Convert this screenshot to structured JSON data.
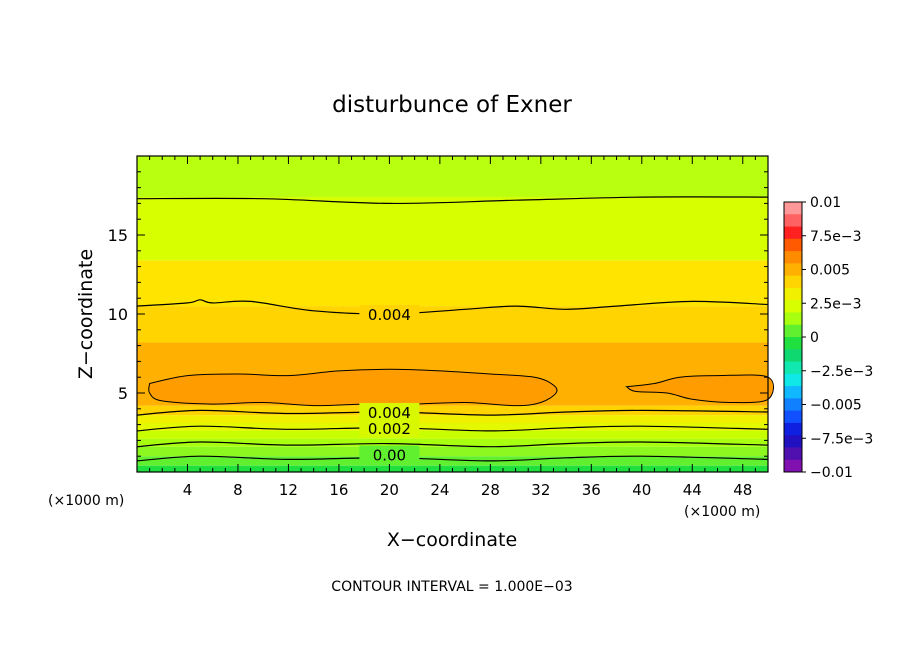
{
  "chart_data": {
    "type": "heatmap",
    "title": "disturbunce of Exner",
    "xlabel": "X−coordinate",
    "ylabel": "Z−coordinate",
    "x_unit": "(×1000 m)",
    "y_unit": "(×1000 m)",
    "xlim": [
      0,
      50
    ],
    "ylim": [
      0,
      20
    ],
    "x_ticks": [
      "4",
      "8",
      "12",
      "16",
      "20",
      "24",
      "28",
      "32",
      "36",
      "40",
      "44",
      "48"
    ],
    "y_ticks": [
      "5",
      "10",
      "15"
    ],
    "colorbar": {
      "range": [
        -0.01,
        0.01
      ],
      "labels": [
        "0.01",
        "7.5e−3",
        "0.005",
        "2.5e−3",
        "0",
        "−2.5e−3",
        "−0.005",
        "−7.5e−3",
        "−0.01"
      ],
      "colors": [
        "#ff9999",
        "#ff6262",
        "#ff2020",
        "#ff5a00",
        "#ff8c00",
        "#ffb000",
        "#ffd400",
        "#f0f000",
        "#d8ff00",
        "#a8ff10",
        "#60f030",
        "#20e040",
        "#10d870",
        "#10e8b0",
        "#10e8e8",
        "#10b8ff",
        "#1080ff",
        "#1050ff",
        "#1020e0",
        "#2010c0",
        "#5010b0",
        "#8010b0"
      ]
    },
    "contour_labels": [
      "0.004",
      "0.004",
      "0.002",
      "0.00"
    ],
    "contour_interval_text": "CONTOUR INTERVAL = 1.000E−03",
    "bands": [
      {
        "z_from": 0.0,
        "z_to": 0.4,
        "color": "#20e040"
      },
      {
        "z_from": 0.4,
        "z_to": 1.0,
        "color": "#60f030"
      },
      {
        "z_from": 1.0,
        "z_to": 1.6,
        "color": "#8cf820"
      },
      {
        "z_from": 1.6,
        "z_to": 2.1,
        "color": "#a8ff10"
      },
      {
        "z_from": 2.1,
        "z_to": 2.6,
        "color": "#c8ff00"
      },
      {
        "z_from": 2.6,
        "z_to": 3.1,
        "color": "#e4f800"
      },
      {
        "z_from": 3.1,
        "z_to": 3.6,
        "color": "#f0f000"
      },
      {
        "z_from": 3.6,
        "z_to": 4.2,
        "color": "#ffd400"
      },
      {
        "z_from": 4.2,
        "z_to": 8.2,
        "color": "#ffb000"
      },
      {
        "z_from": 8.2,
        "z_to": 10.5,
        "color": "#ffd400"
      },
      {
        "z_from": 10.5,
        "z_to": 13.4,
        "color": "#ffe400"
      },
      {
        "z_from": 13.4,
        "z_to": 17.4,
        "color": "#d8ff00"
      },
      {
        "z_from": 17.4,
        "z_to": 20.0,
        "color": "#b8ff10"
      }
    ],
    "core_color": "#ff9c00",
    "core_regions": [
      [
        [
          1.0,
          5.6
        ],
        [
          4.0,
          6.1
        ],
        [
          8.0,
          6.2
        ],
        [
          12.0,
          6.1
        ],
        [
          16.0,
          6.4
        ],
        [
          20.0,
          6.5
        ],
        [
          24.0,
          6.4
        ],
        [
          28.0,
          6.2
        ],
        [
          31.5,
          6.0
        ],
        [
          33.0,
          5.5
        ],
        [
          33.2,
          5.0
        ],
        [
          32.0,
          4.4
        ],
        [
          30.0,
          4.2
        ],
        [
          26.0,
          4.4
        ],
        [
          22.0,
          4.3
        ],
        [
          18.0,
          4.3
        ],
        [
          14.0,
          4.2
        ],
        [
          10.0,
          4.4
        ],
        [
          6.0,
          4.3
        ],
        [
          2.0,
          4.5
        ],
        [
          1.0,
          5.0
        ]
      ],
      [
        [
          38.8,
          5.4
        ],
        [
          41.0,
          5.6
        ],
        [
          43.0,
          6.0
        ],
        [
          46.0,
          6.1
        ],
        [
          50.0,
          6.0
        ],
        [
          50.0,
          4.6
        ],
        [
          47.0,
          4.4
        ],
        [
          44.0,
          4.6
        ],
        [
          42.0,
          5.0
        ],
        [
          39.5,
          5.1
        ]
      ]
    ],
    "contour_lines": [
      [
        [
          0,
          17.3
        ],
        [
          10,
          17.3
        ],
        [
          20,
          17.0
        ],
        [
          30,
          17.2
        ],
        [
          40,
          17.4
        ],
        [
          50,
          17.4
        ]
      ],
      [
        [
          0,
          10.5
        ],
        [
          4,
          10.7
        ],
        [
          5,
          10.9
        ],
        [
          6,
          10.7
        ],
        [
          9,
          10.8
        ],
        [
          14,
          10.2
        ],
        [
          20,
          10.0
        ],
        [
          26,
          10.3
        ],
        [
          30,
          10.5
        ],
        [
          34,
          10.3
        ],
        [
          38,
          10.5
        ],
        [
          44,
          10.8
        ],
        [
          50,
          10.6
        ]
      ],
      [
        [
          0,
          3.6
        ],
        [
          5,
          3.9
        ],
        [
          12,
          3.7
        ],
        [
          20,
          3.8
        ],
        [
          28,
          3.6
        ],
        [
          34,
          3.8
        ],
        [
          40,
          3.9
        ],
        [
          50,
          3.8
        ]
      ],
      [
        [
          0,
          2.6
        ],
        [
          5,
          2.9
        ],
        [
          12,
          2.7
        ],
        [
          20,
          2.8
        ],
        [
          28,
          2.6
        ],
        [
          34,
          2.8
        ],
        [
          40,
          2.9
        ],
        [
          50,
          2.7
        ]
      ],
      [
        [
          0,
          1.6
        ],
        [
          5,
          1.9
        ],
        [
          12,
          1.7
        ],
        [
          20,
          1.8
        ],
        [
          28,
          1.6
        ],
        [
          34,
          1.8
        ],
        [
          40,
          1.9
        ],
        [
          50,
          1.7
        ]
      ],
      [
        [
          0,
          0.7
        ],
        [
          5,
          1.0
        ],
        [
          12,
          0.8
        ],
        [
          20,
          0.9
        ],
        [
          28,
          0.7
        ],
        [
          34,
          0.9
        ],
        [
          40,
          1.0
        ],
        [
          50,
          0.8
        ]
      ]
    ]
  }
}
